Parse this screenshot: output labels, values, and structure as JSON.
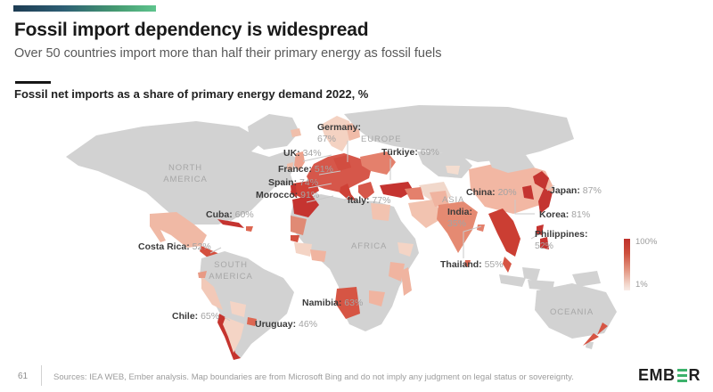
{
  "header": {
    "title": "Fossil import dependency is widespread",
    "subtitle": "Over 50 countries import more than half their primary energy as fossil fuels"
  },
  "chart": {
    "heading": "Fossil net imports as a share of primary energy demand 2022, %"
  },
  "chart_data": {
    "type": "heatmap",
    "subtype": "choropleth-world-map",
    "title": "Fossil net imports as a share of primary energy demand 2022, %",
    "unit": "%",
    "labeled_countries": [
      "Germany",
      "UK",
      "France",
      "Spain",
      "Morocco",
      "Italy",
      "Türkiye",
      "China",
      "India",
      "Japan",
      "Korea",
      "Philippines",
      "Thailand",
      "Cuba",
      "Costa Rica",
      "Chile",
      "Uruguay",
      "Namibia"
    ],
    "values": [
      67,
      34,
      51,
      74,
      91,
      77,
      69,
      20,
      35,
      87,
      81,
      52,
      55,
      60,
      52,
      65,
      46,
      63
    ],
    "legend": {
      "min": 1,
      "max": 100,
      "min_label": "1%",
      "max_label": "100%",
      "position": "right",
      "color_low": "#f8ece7",
      "color_high": "#bf312b"
    },
    "no_data_color": "#d2d2d2",
    "continent_annotations": [
      "NORTH AMERICA",
      "SOUTH AMERICA",
      "EUROPE",
      "ASIA",
      "AFRICA",
      "OCEANIA"
    ]
  },
  "map": {
    "labels": [
      {
        "id": "germany",
        "name": "Germany:",
        "value": "67%"
      },
      {
        "id": "uk",
        "name": "UK:",
        "value": "34%"
      },
      {
        "id": "france",
        "name": "France:",
        "value": "51%"
      },
      {
        "id": "spain",
        "name": "Spain:",
        "value": "74%"
      },
      {
        "id": "morocco",
        "name": "Morocco:",
        "value": "91%"
      },
      {
        "id": "italy",
        "name": "Italy:",
        "value": "77%"
      },
      {
        "id": "turkiye",
        "name": "Türkiye:",
        "value": "69%"
      },
      {
        "id": "china",
        "name": "China:",
        "value": "20%"
      },
      {
        "id": "india",
        "name": "India:",
        "value": "35%"
      },
      {
        "id": "japan",
        "name": "Japan:",
        "value": "87%"
      },
      {
        "id": "korea",
        "name": "Korea:",
        "value": "81%"
      },
      {
        "id": "philippines",
        "name": "Philippines:",
        "value": "52%"
      },
      {
        "id": "thailand",
        "name": "Thailand:",
        "value": "55%"
      },
      {
        "id": "cuba",
        "name": "Cuba:",
        "value": "60%"
      },
      {
        "id": "costa-rica",
        "name": "Costa Rica:",
        "value": "52%"
      },
      {
        "id": "chile",
        "name": "Chile:",
        "value": "65%"
      },
      {
        "id": "uruguay",
        "name": "Uruguay:",
        "value": "46%"
      },
      {
        "id": "namibia",
        "name": "Namibia:",
        "value": "63%"
      }
    ],
    "continents": [
      {
        "id": "north-america",
        "label": "NORTH AMERICA"
      },
      {
        "id": "south-america",
        "label": "SOUTH AMERICA"
      },
      {
        "id": "europe",
        "label": "EUROPE"
      },
      {
        "id": "asia",
        "label": "ASIA"
      },
      {
        "id": "africa",
        "label": "AFRICA"
      },
      {
        "id": "oceania",
        "label": "OCEANIA"
      }
    ],
    "legend": {
      "max": "100%",
      "min": "1%"
    }
  },
  "footer": {
    "page_number": "61",
    "sources": "Sources: IEA WEB, Ember analysis. Map boundaries are from Microsoft Bing and do not imply any judgment on legal status or sovereignty.",
    "logo_prefix": "EMB",
    "logo_suffix": "R"
  },
  "colors": {
    "accent_start": "#1d3c53",
    "accent_end": "#5ec48d",
    "brand_green": "#3cb26b",
    "legend_top": "#bf312b",
    "legend_bottom": "#f8ece7",
    "no_data_gray": "#d2d2d2"
  }
}
